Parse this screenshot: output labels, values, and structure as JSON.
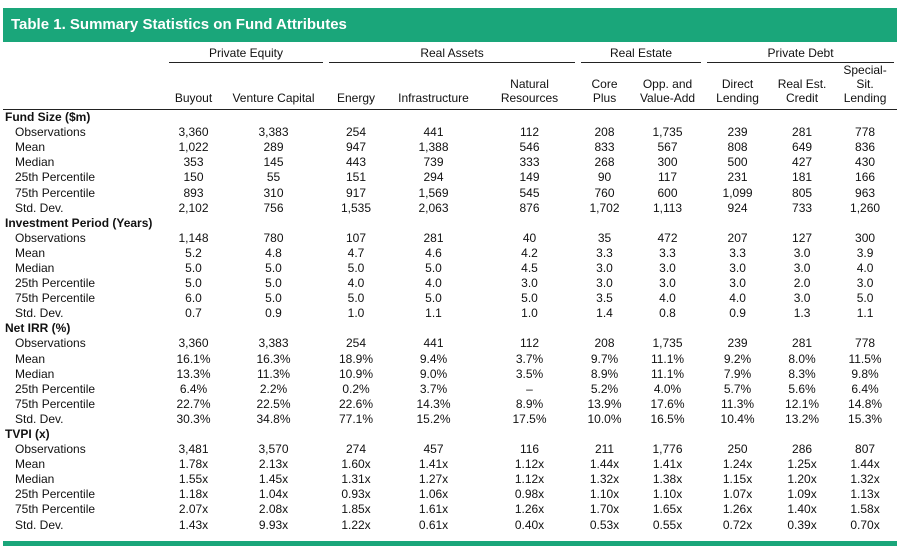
{
  "title": "Table 1.  Summary Statistics on Fund Attributes",
  "groups": [
    "Private Equity",
    "Real Assets",
    "Real Estate",
    "Private Debt"
  ],
  "columns": [
    "Buyout",
    "Venture Capital",
    "Energy",
    "Infrastructure",
    "Natural Resources",
    "Core Plus",
    "Opp. and Value-Add",
    "Direct Lending",
    "Real Est. Credit",
    "Special-Sit. Lending"
  ],
  "sections": [
    {
      "title": "Fund Size ($m)",
      "rows": [
        {
          "label": "Observations",
          "values": [
            "3,360",
            "3,383",
            "254",
            "441",
            "112",
            "208",
            "1,735",
            "239",
            "281",
            "778"
          ]
        },
        {
          "label": "Mean",
          "values": [
            "1,022",
            "289",
            "947",
            "1,388",
            "546",
            "833",
            "567",
            "808",
            "649",
            "836"
          ]
        },
        {
          "label": "Median",
          "values": [
            "353",
            "145",
            "443",
            "739",
            "333",
            "268",
            "300",
            "500",
            "427",
            "430"
          ]
        },
        {
          "label": "25th Percentile",
          "values": [
            "150",
            "55",
            "151",
            "294",
            "149",
            "90",
            "117",
            "231",
            "181",
            "166"
          ]
        },
        {
          "label": "75th Percentile",
          "values": [
            "893",
            "310",
            "917",
            "1,569",
            "545",
            "760",
            "600",
            "1,099",
            "805",
            "963"
          ]
        },
        {
          "label": "Std. Dev.",
          "values": [
            "2,102",
            "756",
            "1,535",
            "2,063",
            "876",
            "1,702",
            "1,113",
            "924",
            "733",
            "1,260"
          ]
        }
      ]
    },
    {
      "title": "Investment Period (Years)",
      "rows": [
        {
          "label": "Observations",
          "values": [
            "1,148",
            "780",
            "107",
            "281",
            "40",
            "35",
            "472",
            "207",
            "127",
            "300"
          ]
        },
        {
          "label": "Mean",
          "values": [
            "5.2",
            "4.8",
            "4.7",
            "4.6",
            "4.2",
            "3.3",
            "3.3",
            "3.3",
            "3.0",
            "3.9"
          ]
        },
        {
          "label": "Median",
          "values": [
            "5.0",
            "5.0",
            "5.0",
            "5.0",
            "4.5",
            "3.0",
            "3.0",
            "3.0",
            "3.0",
            "4.0"
          ]
        },
        {
          "label": "25th Percentile",
          "values": [
            "5.0",
            "5.0",
            "4.0",
            "4.0",
            "3.0",
            "3.0",
            "3.0",
            "3.0",
            "2.0",
            "3.0"
          ]
        },
        {
          "label": "75th Percentile",
          "values": [
            "6.0",
            "5.0",
            "5.0",
            "5.0",
            "5.0",
            "3.5",
            "4.0",
            "4.0",
            "3.0",
            "5.0"
          ]
        },
        {
          "label": "Std. Dev.",
          "values": [
            "0.7",
            "0.9",
            "1.0",
            "1.1",
            "1.0",
            "1.4",
            "0.8",
            "0.9",
            "1.3",
            "1.1"
          ]
        }
      ]
    },
    {
      "title": "Net IRR (%)",
      "rows": [
        {
          "label": "Observations",
          "values": [
            "3,360",
            "3,383",
            "254",
            "441",
            "112",
            "208",
            "1,735",
            "239",
            "281",
            "778"
          ]
        },
        {
          "label": "Mean",
          "values": [
            "16.1%",
            "16.3%",
            "18.9%",
            "9.4%",
            "3.7%",
            "9.7%",
            "11.1%",
            "9.2%",
            "8.0%",
            "11.5%"
          ]
        },
        {
          "label": "Median",
          "values": [
            "13.3%",
            "11.3%",
            "10.9%",
            "9.0%",
            "3.5%",
            "8.9%",
            "11.1%",
            "7.9%",
            "8.3%",
            "9.8%"
          ]
        },
        {
          "label": "25th Percentile",
          "values": [
            "6.4%",
            "2.2%",
            "0.2%",
            "3.7%",
            "–",
            "5.2%",
            "4.0%",
            "5.7%",
            "5.6%",
            "6.4%"
          ]
        },
        {
          "label": "75th Percentile",
          "values": [
            "22.7%",
            "22.5%",
            "22.6%",
            "14.3%",
            "8.9%",
            "13.9%",
            "17.6%",
            "11.3%",
            "12.1%",
            "14.8%"
          ]
        },
        {
          "label": "Std. Dev.",
          "values": [
            "30.3%",
            "34.8%",
            "77.1%",
            "15.2%",
            "17.5%",
            "10.0%",
            "16.5%",
            "10.4%",
            "13.2%",
            "15.3%"
          ]
        }
      ]
    },
    {
      "title": "TVPI (x)",
      "rows": [
        {
          "label": "Observations",
          "values": [
            "3,481",
            "3,570",
            "274",
            "457",
            "116",
            "211",
            "1,776",
            "250",
            "286",
            "807"
          ]
        },
        {
          "label": "Mean",
          "values": [
            "1.78x",
            "2.13x",
            "1.60x",
            "1.41x",
            "1.12x",
            "1.44x",
            "1.41x",
            "1.24x",
            "1.25x",
            "1.44x"
          ]
        },
        {
          "label": "Median",
          "values": [
            "1.55x",
            "1.45x",
            "1.31x",
            "1.27x",
            "1.12x",
            "1.32x",
            "1.38x",
            "1.15x",
            "1.20x",
            "1.32x"
          ]
        },
        {
          "label": "25th Percentile",
          "values": [
            "1.18x",
            "1.04x",
            "0.93x",
            "1.06x",
            "0.98x",
            "1.10x",
            "1.10x",
            "1.07x",
            "1.09x",
            "1.13x"
          ]
        },
        {
          "label": "75th Percentile",
          "values": [
            "2.07x",
            "2.08x",
            "1.85x",
            "1.61x",
            "1.26x",
            "1.70x",
            "1.65x",
            "1.26x",
            "1.40x",
            "1.58x"
          ]
        },
        {
          "label": "Std. Dev.",
          "values": [
            "1.43x",
            "9.93x",
            "1.22x",
            "0.61x",
            "0.40x",
            "0.53x",
            "0.55x",
            "0.72x",
            "0.39x",
            "0.70x"
          ]
        }
      ]
    }
  ],
  "colors": {
    "accent": "#1aa67a"
  }
}
